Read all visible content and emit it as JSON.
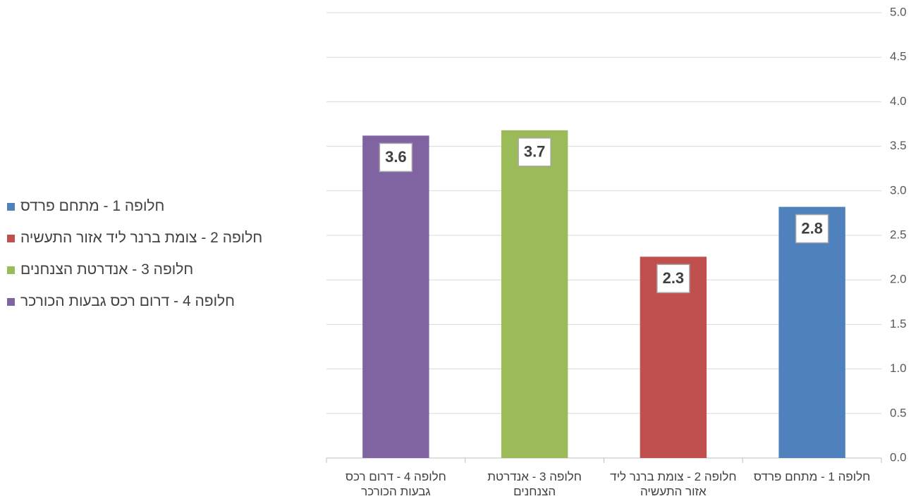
{
  "chart_data": {
    "type": "bar",
    "categories": [
      "חלופה 1 - מתחם פרדס",
      "חלופה 2 - צומת ברנר ליד אזור התעשיה",
      "חלופה 3 -  אנדרטת הצנחנים",
      "חלופה 4 - דרום רכס גבעות הכורכר"
    ],
    "values": [
      2.82,
      2.26,
      3.68,
      3.62
    ],
    "value_labels": [
      "2.8",
      "2.3",
      "3.7",
      "3.6"
    ],
    "colors": [
      "#4f81bd",
      "#c0504d",
      "#9bbb59",
      "#8064a2"
    ],
    "ylim": [
      0,
      5
    ],
    "yticks": [
      {
        "value": 0,
        "label": "0.0"
      },
      {
        "value": 0.5,
        "label": "0.5"
      },
      {
        "value": 1,
        "label": "1.0"
      },
      {
        "value": 1.5,
        "label": "1.5"
      },
      {
        "value": 2,
        "label": "2.0"
      },
      {
        "value": 2.5,
        "label": "2.5"
      },
      {
        "value": 3,
        "label": "3.0"
      },
      {
        "value": 3.5,
        "label": "3.5"
      },
      {
        "value": 4,
        "label": "4.0"
      },
      {
        "value": 4.5,
        "label": "4.5"
      },
      {
        "value": 5,
        "label": "5.0"
      }
    ],
    "grid": true,
    "x_reversed": true,
    "y_axis_side": "right",
    "legend": "left"
  }
}
